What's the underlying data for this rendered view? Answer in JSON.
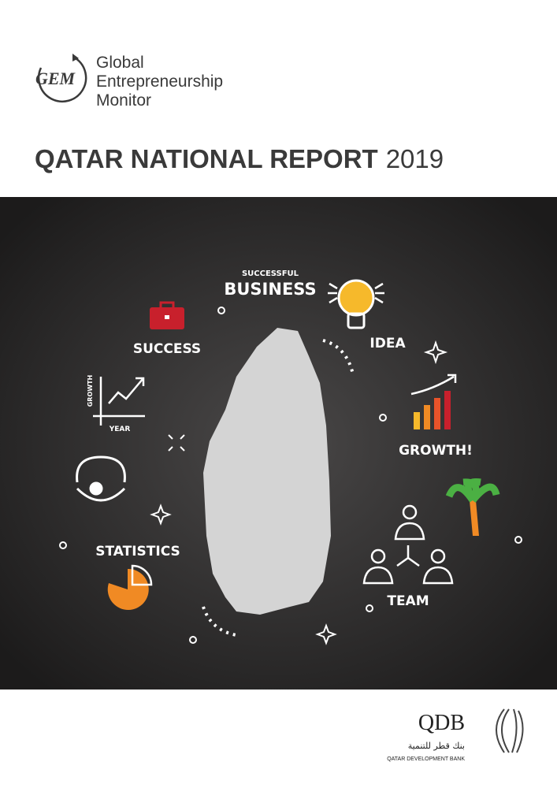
{
  "header": {
    "logo": "GEM",
    "brand_lines": [
      "Global",
      "Entrepreneurship",
      "Monitor"
    ],
    "title": "QATAR NATIONAL REPORT",
    "year": "2019"
  },
  "illustration": {
    "successful": "SUCCESSFUL",
    "business": "BUSINESS",
    "idea": "IDEA",
    "success": "SUCCESS",
    "growth_axis": "GROWTH",
    "year_axis": "YEAR",
    "growth": "GROWTH!",
    "statistics": "STATISTICS",
    "team": "TEAM"
  },
  "footer": {
    "logo": "QDB",
    "arabic": "بنك قطر للتنمية",
    "bank_name": "QATAR DEVELOPMENT BANK"
  }
}
